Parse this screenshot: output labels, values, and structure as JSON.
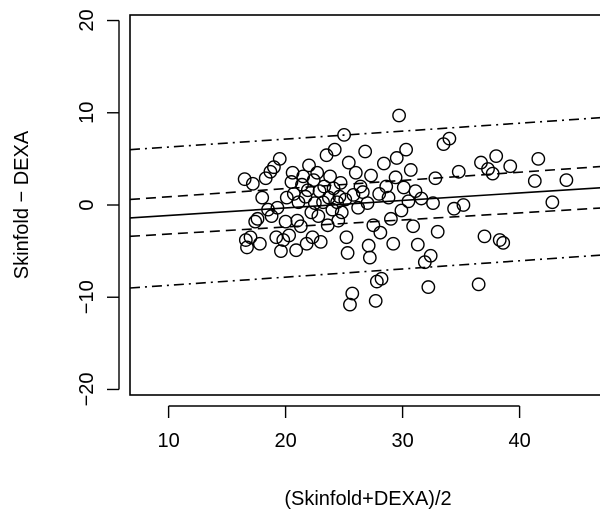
{
  "chart_data": {
    "type": "scatter",
    "title": "",
    "xlabel": "(Skinfold+DEXA)/2",
    "ylabel": "Skinfold − DEXA",
    "xlim": [
      6.7,
      47.3
    ],
    "ylim": [
      -20.6,
      20.6
    ],
    "xticks": [
      10,
      20,
      30,
      40
    ],
    "yticks": [
      -20,
      -10,
      0,
      10,
      20
    ],
    "xtick_labels": [
      "10",
      "20",
      "30",
      "40"
    ],
    "ytick_labels": [
      "−20",
      "−10",
      "0",
      "10",
      "20"
    ],
    "grid": false,
    "legend": "none",
    "marker": "open-circle",
    "lines": [
      {
        "kind": "regression",
        "style": "solid",
        "x": [
          6.7,
          47.3
        ],
        "y": [
          -1.4,
          1.9
        ]
      },
      {
        "kind": "upper-limit",
        "style": "dash-dot",
        "x": [
          6.7,
          47.3
        ],
        "y": [
          6.0,
          9.5
        ]
      },
      {
        "kind": "lower-limit",
        "style": "dash-dot",
        "x": [
          6.7,
          47.3
        ],
        "y": [
          -9.0,
          -5.4
        ]
      },
      {
        "kind": "upper-ci",
        "style": "dashed",
        "x": [
          6.7,
          47.3
        ],
        "y": [
          0.6,
          4.2
        ]
      },
      {
        "kind": "lower-ci",
        "style": "dashed",
        "x": [
          6.7,
          47.3
        ],
        "y": [
          -3.4,
          -0.3
        ]
      }
    ],
    "points": [
      [
        16.5,
        2.8
      ],
      [
        16.6,
        -3.8
      ],
      [
        16.7,
        -4.6
      ],
      [
        17.0,
        -3.5
      ],
      [
        17.2,
        2.3
      ],
      [
        17.4,
        -1.8
      ],
      [
        17.6,
        -1.5
      ],
      [
        17.8,
        -4.2
      ],
      [
        18.0,
        0.8
      ],
      [
        18.3,
        2.9
      ],
      [
        18.5,
        -0.5
      ],
      [
        18.7,
        3.6
      ],
      [
        18.8,
        -1.2
      ],
      [
        19.0,
        4.1
      ],
      [
        19.2,
        -3.5
      ],
      [
        19.3,
        -0.3
      ],
      [
        19.5,
        5.0
      ],
      [
        19.6,
        -5.0
      ],
      [
        19.8,
        -3.8
      ],
      [
        20.0,
        -1.8
      ],
      [
        20.1,
        0.8
      ],
      [
        20.3,
        -3.3
      ],
      [
        20.5,
        2.5
      ],
      [
        20.6,
        3.5
      ],
      [
        20.7,
        1.2
      ],
      [
        20.9,
        -4.9
      ],
      [
        21.0,
        -1.7
      ],
      [
        21.1,
        0.3
      ],
      [
        21.3,
        -2.3
      ],
      [
        21.4,
        2.2
      ],
      [
        21.5,
        3.1
      ],
      [
        21.7,
        0.9
      ],
      [
        21.8,
        -4.2
      ],
      [
        21.9,
        1.6
      ],
      [
        22.0,
        4.3
      ],
      [
        22.2,
        -0.8
      ],
      [
        22.3,
        -3.5
      ],
      [
        22.4,
        2.7
      ],
      [
        22.5,
        0.2
      ],
      [
        22.7,
        3.5
      ],
      [
        22.8,
        -1.2
      ],
      [
        22.9,
        1.5
      ],
      [
        23.0,
        -4.0
      ],
      [
        23.2,
        0.3
      ],
      [
        23.3,
        2.0
      ],
      [
        23.5,
        5.4
      ],
      [
        23.6,
        -2.2
      ],
      [
        23.7,
        0.8
      ],
      [
        23.8,
        3.1
      ],
      [
        24.0,
        -0.5
      ],
      [
        24.1,
        1.8
      ],
      [
        24.2,
        6.0
      ],
      [
        24.4,
        0.3
      ],
      [
        24.5,
        -1.7
      ],
      [
        24.6,
        0.9
      ],
      [
        24.7,
        2.4
      ],
      [
        24.8,
        -0.8
      ],
      [
        25.0,
        7.6
      ],
      [
        25.1,
        0.6
      ],
      [
        25.2,
        -3.5
      ],
      [
        25.3,
        -5.2
      ],
      [
        25.4,
        4.6
      ],
      [
        25.5,
        -10.8
      ],
      [
        25.7,
        -9.6
      ],
      [
        25.8,
        1.1
      ],
      [
        26.0,
        3.5
      ],
      [
        26.2,
        -0.3
      ],
      [
        26.4,
        2.0
      ],
      [
        26.6,
        1.4
      ],
      [
        26.8,
        5.8
      ],
      [
        27.0,
        0.2
      ],
      [
        27.1,
        -4.4
      ],
      [
        27.2,
        -5.7
      ],
      [
        27.3,
        3.2
      ],
      [
        27.5,
        -2.2
      ],
      [
        27.7,
        -10.4
      ],
      [
        27.8,
        -8.3
      ],
      [
        28.0,
        1.2
      ],
      [
        28.1,
        -3.0
      ],
      [
        28.2,
        -8.0
      ],
      [
        28.4,
        4.5
      ],
      [
        28.6,
        2.0
      ],
      [
        28.8,
        0.8
      ],
      [
        29.0,
        -1.5
      ],
      [
        29.2,
        -4.2
      ],
      [
        29.4,
        3.0
      ],
      [
        29.5,
        5.1
      ],
      [
        29.7,
        9.7
      ],
      [
        29.9,
        -0.6
      ],
      [
        30.1,
        1.9
      ],
      [
        30.3,
        6.0
      ],
      [
        30.5,
        0.4
      ],
      [
        30.7,
        3.8
      ],
      [
        30.9,
        -2.3
      ],
      [
        31.1,
        1.5
      ],
      [
        31.3,
        -4.3
      ],
      [
        31.6,
        0.7
      ],
      [
        31.9,
        -6.2
      ],
      [
        32.2,
        -8.9
      ],
      [
        32.4,
        -5.5
      ],
      [
        32.6,
        0.2
      ],
      [
        32.8,
        2.9
      ],
      [
        33.0,
        -2.9
      ],
      [
        33.5,
        6.6
      ],
      [
        34.0,
        7.2
      ],
      [
        34.4,
        -0.4
      ],
      [
        34.8,
        3.6
      ],
      [
        35.2,
        0.0
      ],
      [
        36.5,
        -8.6
      ],
      [
        36.7,
        4.6
      ],
      [
        37.0,
        -3.4
      ],
      [
        37.3,
        3.9
      ],
      [
        37.7,
        3.4
      ],
      [
        38.0,
        5.3
      ],
      [
        38.3,
        -3.8
      ],
      [
        38.6,
        -4.1
      ],
      [
        39.2,
        4.2
      ],
      [
        41.3,
        2.6
      ],
      [
        41.6,
        5.0
      ],
      [
        42.8,
        0.3
      ],
      [
        44.0,
        2.7
      ]
    ]
  }
}
